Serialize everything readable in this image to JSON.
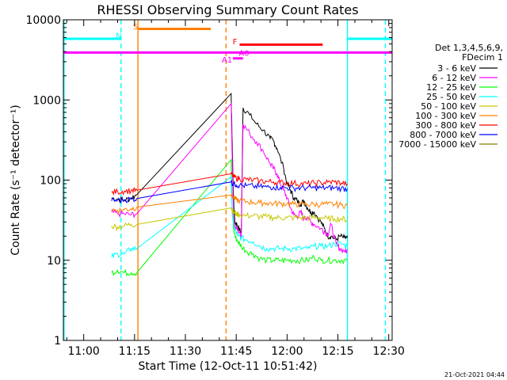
{
  "title": "RHESSI Observing Summary Count Rates",
  "xlabel": "Start Time (12-Oct-11 10:51:42)",
  "ylabel": "Count Rate (s⁻¹ detector⁻¹)",
  "timestamp": "21-Oct-2021 04:44",
  "legend_header": [
    "Det 1,3,4,5,6,9,",
    "FDecim 1"
  ],
  "chart_data": {
    "type": "line",
    "title": "RHESSI Observing Summary Count Rates",
    "xlabel": "Start Time (12-Oct-11 10:51:42)",
    "ylabel": "Count Rate (s⁻¹ detector⁻¹)",
    "x_unit": "minutes of day",
    "xlim": [
      654,
      751
    ],
    "ylim": [
      1,
      10000
    ],
    "yscale": "log",
    "grid": false,
    "legend_position": "right",
    "x_ticks": [
      {
        "value": 660,
        "label": "11:00"
      },
      {
        "value": 675,
        "label": "11:15"
      },
      {
        "value": 690,
        "label": "11:30"
      },
      {
        "value": 705,
        "label": "11:45"
      },
      {
        "value": 720,
        "label": "12:00"
      },
      {
        "value": 735,
        "label": "12:15"
      },
      {
        "value": 750,
        "label": "12:30"
      }
    ],
    "y_ticks": [
      {
        "value": 1,
        "label": "1"
      },
      {
        "value": 10,
        "label": "10"
      },
      {
        "value": 100,
        "label": "100"
      },
      {
        "value": 1000,
        "label": "1000"
      },
      {
        "value": 10000,
        "label": "10000"
      }
    ],
    "series": [
      {
        "name": "3 - 6 keV",
        "color": "#000000",
        "points": [
          [
            668.2,
            60
          ],
          [
            670,
            58
          ],
          [
            672,
            56
          ],
          [
            674,
            60
          ],
          [
            675.7,
            66
          ],
          [
            703.5,
            1200
          ],
          [
            703.8,
            300
          ],
          [
            704.2,
            60
          ],
          [
            704.6,
            30
          ],
          [
            705.2,
            28
          ],
          [
            706,
            24
          ],
          [
            706.5,
            22
          ],
          [
            707,
            800
          ],
          [
            709,
            650
          ],
          [
            711,
            500
          ],
          [
            713,
            420
          ],
          [
            715,
            330
          ],
          [
            716,
            310
          ],
          [
            717,
            250
          ],
          [
            719,
            140
          ],
          [
            720,
            90
          ],
          [
            721,
            75
          ],
          [
            722,
            60
          ],
          [
            723,
            55
          ],
          [
            724,
            50
          ],
          [
            725,
            55
          ],
          [
            726,
            45
          ],
          [
            727,
            40
          ],
          [
            728,
            40
          ],
          [
            730,
            30
          ],
          [
            731,
            25
          ],
          [
            732,
            20
          ],
          [
            733,
            20
          ],
          [
            734.5,
            18
          ],
          [
            735.5,
            20
          ],
          [
            737,
            19
          ],
          [
            737.8,
            19
          ]
        ]
      },
      {
        "name": "6 - 12 keV",
        "color": "#ff00ff",
        "points": [
          [
            668.2,
            40
          ],
          [
            670,
            38
          ],
          [
            672,
            38
          ],
          [
            674,
            37
          ],
          [
            675.7,
            38
          ],
          [
            703.5,
            900
          ],
          [
            703.8,
            200
          ],
          [
            704.2,
            40
          ],
          [
            704.6,
            25
          ],
          [
            705.2,
            25
          ],
          [
            706,
            22
          ],
          [
            706.5,
            20
          ],
          [
            707,
            500
          ],
          [
            709,
            380
          ],
          [
            711,
            300
          ],
          [
            713,
            230
          ],
          [
            715,
            160
          ],
          [
            716,
            140
          ],
          [
            717,
            120
          ],
          [
            718,
            90
          ],
          [
            719,
            75
          ],
          [
            720,
            60
          ],
          [
            721,
            45
          ],
          [
            722,
            37
          ],
          [
            723,
            35
          ],
          [
            724,
            40
          ],
          [
            725,
            33
          ],
          [
            726,
            35
          ],
          [
            727,
            30
          ],
          [
            728,
            28
          ],
          [
            730,
            25
          ],
          [
            731,
            23
          ],
          [
            732,
            21
          ],
          [
            733,
            28
          ],
          [
            734.5,
            16
          ],
          [
            735.5,
            14
          ],
          [
            737,
            13
          ],
          [
            737.8,
            13
          ]
        ]
      },
      {
        "name": "12 - 25 keV",
        "color": "#00ff00",
        "points": [
          [
            668.2,
            7
          ],
          [
            670,
            7.5
          ],
          [
            672,
            7
          ],
          [
            674,
            7
          ],
          [
            675.7,
            7
          ],
          [
            703.5,
            180
          ],
          [
            703.8,
            45
          ],
          [
            704.2,
            25
          ],
          [
            704.6,
            20
          ],
          [
            705.5,
            17
          ],
          [
            706.5,
            15
          ],
          [
            708,
            13
          ],
          [
            710,
            12
          ],
          [
            712,
            10.5
          ],
          [
            714,
            10
          ],
          [
            716,
            10
          ],
          [
            718,
            10
          ],
          [
            720,
            10
          ],
          [
            722,
            10
          ],
          [
            724,
            10
          ],
          [
            726,
            10
          ],
          [
            728,
            11
          ],
          [
            730,
            10
          ],
          [
            732,
            10
          ],
          [
            734,
            10
          ],
          [
            736,
            10
          ],
          [
            737.8,
            10
          ]
        ]
      },
      {
        "name": "25 - 50 keV",
        "color": "#00ffff",
        "points": [
          [
            668.2,
            11
          ],
          [
            670,
            12
          ],
          [
            672,
            12
          ],
          [
            674,
            14
          ],
          [
            675.7,
            14
          ],
          [
            703.5,
            110
          ],
          [
            703.8,
            40
          ],
          [
            704.2,
            28
          ],
          [
            704.6,
            24
          ],
          [
            705.5,
            20
          ],
          [
            706.5,
            19
          ],
          [
            708,
            18
          ],
          [
            710,
            17
          ],
          [
            712,
            15
          ],
          [
            714,
            14
          ],
          [
            716,
            14
          ],
          [
            718,
            14
          ],
          [
            720,
            14
          ],
          [
            722,
            14
          ],
          [
            724,
            14
          ],
          [
            726,
            14
          ],
          [
            728,
            15
          ],
          [
            730,
            15
          ],
          [
            732,
            15
          ],
          [
            734,
            16
          ],
          [
            736,
            16
          ],
          [
            737.8,
            15
          ]
        ]
      },
      {
        "name": "50 - 100 keV",
        "color": "#c8c800",
        "points": [
          [
            668.2,
            27
          ],
          [
            670,
            26
          ],
          [
            672,
            27
          ],
          [
            674,
            28
          ],
          [
            675.7,
            28
          ],
          [
            703.5,
            45
          ],
          [
            704.2,
            40
          ],
          [
            705,
            38
          ],
          [
            706,
            37
          ],
          [
            708,
            36
          ],
          [
            710,
            36
          ],
          [
            712,
            35
          ],
          [
            714,
            35
          ],
          [
            716,
            34
          ],
          [
            718,
            34
          ],
          [
            720,
            34
          ],
          [
            722,
            34
          ],
          [
            724,
            34
          ],
          [
            726,
            34
          ],
          [
            728,
            34
          ],
          [
            730,
            34
          ],
          [
            732,
            33
          ],
          [
            734,
            33
          ],
          [
            736,
            33
          ],
          [
            737.8,
            32
          ]
        ]
      },
      {
        "name": "100 - 300 keV",
        "color": "#ff8000",
        "points": [
          [
            668.2,
            43
          ],
          [
            670,
            42
          ],
          [
            672,
            43
          ],
          [
            674,
            44
          ],
          [
            675.7,
            46
          ],
          [
            703.5,
            65
          ],
          [
            704.2,
            60
          ],
          [
            705,
            57
          ],
          [
            706,
            55
          ],
          [
            708,
            54
          ],
          [
            710,
            53
          ],
          [
            712,
            52
          ],
          [
            714,
            52
          ],
          [
            716,
            51
          ],
          [
            718,
            51
          ],
          [
            720,
            51
          ],
          [
            722,
            50
          ],
          [
            724,
            50
          ],
          [
            726,
            50
          ],
          [
            728,
            50
          ],
          [
            730,
            50
          ],
          [
            732,
            50
          ],
          [
            734,
            50
          ],
          [
            736,
            49
          ],
          [
            737.8,
            48
          ]
        ]
      },
      {
        "name": "300 - 800 keV",
        "color": "#ff0000",
        "points": [
          [
            668.2,
            70
          ],
          [
            670,
            72
          ],
          [
            672,
            73
          ],
          [
            674,
            74
          ],
          [
            675.7,
            75
          ],
          [
            703.5,
            120
          ],
          [
            704.2,
            110
          ],
          [
            705,
            106
          ],
          [
            706,
            104
          ],
          [
            708,
            102
          ],
          [
            710,
            100
          ],
          [
            712,
            98
          ],
          [
            714,
            96
          ],
          [
            716,
            95
          ],
          [
            718,
            94
          ],
          [
            720,
            92
          ],
          [
            722,
            92
          ],
          [
            724,
            90
          ],
          [
            726,
            90
          ],
          [
            728,
            92
          ],
          [
            730,
            93
          ],
          [
            732,
            94
          ],
          [
            734,
            95
          ],
          [
            736,
            92
          ],
          [
            737.8,
            90
          ]
        ]
      },
      {
        "name": "800 - 7000 keV",
        "color": "#0000ff",
        "points": [
          [
            668.2,
            55
          ],
          [
            670,
            56
          ],
          [
            672,
            57
          ],
          [
            674,
            58
          ],
          [
            675.7,
            59
          ],
          [
            703.5,
            95
          ],
          [
            704.2,
            90
          ],
          [
            705,
            88
          ],
          [
            706,
            86
          ],
          [
            708,
            85
          ],
          [
            710,
            84
          ],
          [
            712,
            83
          ],
          [
            714,
            82
          ],
          [
            716,
            82
          ],
          [
            718,
            81
          ],
          [
            720,
            80
          ],
          [
            722,
            80
          ],
          [
            724,
            80
          ],
          [
            726,
            80
          ],
          [
            728,
            80
          ],
          [
            730,
            80
          ],
          [
            732,
            80
          ],
          [
            734,
            80
          ],
          [
            736,
            79
          ],
          [
            737.8,
            78
          ]
        ]
      },
      {
        "name": "7000 - 15000 keV",
        "color": "#808000",
        "points": []
      }
    ],
    "annotations": {
      "bars": [
        {
          "label": "",
          "color": "#00ffff",
          "x0": 654,
          "x1": 671,
          "y": 5800
        },
        {
          "label": "",
          "color": "#00ffff",
          "x0": 737.8,
          "x1": 751,
          "y": 5800
        },
        {
          "label": "",
          "color": "#ff8000",
          "x0": 676,
          "x1": 697.5,
          "y": 7700
        },
        {
          "label": "",
          "color": "#ff0000",
          "x0": 706,
          "x1": 730.5,
          "y": 4900
        },
        {
          "label": "",
          "color": "#ff00ff",
          "x0": 654,
          "x1": 751,
          "y": 3900
        },
        {
          "label": "",
          "color": "#ff00ff",
          "x0": 704,
          "x1": 707,
          "y": 3300
        }
      ],
      "vlines": [
        {
          "x": 654.2,
          "color": "#00ffff",
          "dash": false
        },
        {
          "x": 671,
          "color": "#00ffff",
          "dash": true
        },
        {
          "x": 676,
          "color": "#ff8000",
          "dash": false
        },
        {
          "x": 702,
          "color": "#ff8000",
          "dash": true
        },
        {
          "x": 737.8,
          "color": "#00ffff",
          "dash": false
        },
        {
          "x": 749,
          "color": "#00ffff",
          "dash": true
        }
      ],
      "labels": [
        {
          "text": "N",
          "x": 670.3,
          "y": 6400,
          "color": "#00ffff"
        },
        {
          "text": "S",
          "x": 675.3,
          "y": 8300,
          "color": "#ff8000"
        },
        {
          "text": "F",
          "x": 704.6,
          "y": 5400,
          "color": "#ff0000"
        },
        {
          "text": "A1",
          "x": 702.3,
          "y": 3200,
          "color": "#ff00ff"
        },
        {
          "text": "A0",
          "x": 707.3,
          "y": 3900,
          "color": "#ff00ff"
        }
      ]
    }
  }
}
